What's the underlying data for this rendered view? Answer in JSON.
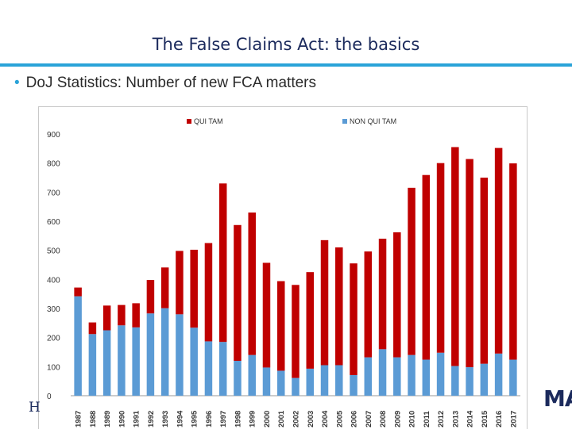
{
  "header": {
    "title": "The False Claims Act: the basics",
    "bullet": "DoJ Statistics:  Number of new FCA matters"
  },
  "footer": {
    "left_logo_text": "H",
    "right_logo_text": "MA"
  },
  "colors": {
    "qui_tam": "#c00000",
    "non_qui_tam": "#5b9bd5",
    "title_rule": "#2aa3d8"
  },
  "chart_data": {
    "type": "bar",
    "stacked": true,
    "title": "",
    "xlabel": "",
    "ylabel": "",
    "ylim": [
      0,
      900
    ],
    "yticks": [
      "0",
      "100",
      "200",
      "300",
      "400",
      "500",
      "600",
      "700",
      "800",
      "900"
    ],
    "grid": false,
    "legend_position": "top",
    "categories": [
      "1987",
      "1988",
      "1989",
      "1990",
      "1991",
      "1992",
      "1993",
      "1994",
      "1995",
      "1996",
      "1997",
      "1998",
      "1999",
      "2000",
      "2001",
      "2002",
      "2003",
      "2004",
      "2005",
      "2006",
      "2007",
      "2008",
      "2009",
      "2010",
      "2011",
      "2012",
      "2013",
      "2014",
      "2015",
      "2016",
      "2017"
    ],
    "series": [
      {
        "name": "NON QUI TAM",
        "color": "#5b9bd5",
        "values": [
          342,
          212,
          225,
          242,
          235,
          283,
          301,
          280,
          234,
          187,
          185,
          120,
          140,
          97,
          86,
          61,
          93,
          105,
          105,
          71,
          132,
          160,
          132,
          140,
          124,
          148,
          102,
          98,
          110,
          145,
          124
        ]
      },
      {
        "name": "QUI TAM",
        "color": "#c00000",
        "values": [
          30,
          40,
          85,
          70,
          83,
          115,
          140,
          218,
          268,
          338,
          545,
          467,
          490,
          360,
          308,
          320,
          332,
          430,
          405,
          384,
          364,
          380,
          430,
          575,
          635,
          652,
          753,
          716,
          640,
          707,
          675
        ]
      }
    ],
    "legend_order": [
      "QUI TAM",
      "NON QUI TAM"
    ]
  }
}
